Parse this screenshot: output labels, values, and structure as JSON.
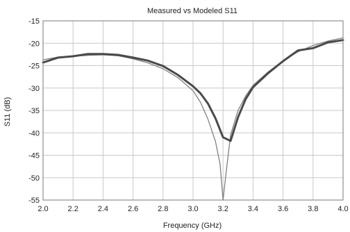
{
  "chart_data": {
    "type": "line",
    "title": "Measured vs Modeled S11",
    "xlabel": "Frequency (GHz)",
    "ylabel": "S11 (dB)",
    "xlim": [
      2.0,
      4.0
    ],
    "ylim": [
      -55,
      -15
    ],
    "x_ticks": [
      "2.0",
      "2.2",
      "2.4",
      "2.6",
      "2.8",
      "3.0",
      "3.2",
      "3.4",
      "3.6",
      "3.8",
      "4.0"
    ],
    "y_ticks": [
      "-15",
      "-20",
      "-25",
      "-30",
      "-35",
      "-40",
      "-45",
      "-50",
      "-55"
    ],
    "grid": true,
    "legend": "none",
    "series": [
      {
        "color": "#4a4a4a",
        "style": "thick",
        "x": [
          2.0,
          2.1,
          2.2,
          2.3,
          2.4,
          2.5,
          2.6,
          2.7,
          2.8,
          2.9,
          3.0,
          3.05,
          3.1,
          3.15,
          3.2,
          3.25,
          3.3,
          3.35,
          3.4,
          3.5,
          3.6,
          3.7,
          3.8,
          3.9,
          4.0
        ],
        "y": [
          -24.3,
          -23.2,
          -22.9,
          -22.4,
          -22.4,
          -22.6,
          -23.2,
          -23.9,
          -25.1,
          -27.1,
          -29.6,
          -31.2,
          -33.5,
          -36.8,
          -41.0,
          -41.8,
          -36.5,
          -32.5,
          -29.8,
          -26.7,
          -24.0,
          -21.6,
          -21.1,
          -19.8,
          -19.3
        ]
      },
      {
        "color": "#808080",
        "style": "thin",
        "x": [
          2.0,
          2.1,
          2.2,
          2.3,
          2.4,
          2.5,
          2.6,
          2.7,
          2.8,
          2.9,
          3.0,
          3.05,
          3.1,
          3.15,
          3.18,
          3.2,
          3.22,
          3.25,
          3.3,
          3.35,
          3.4,
          3.5,
          3.6,
          3.7,
          3.8,
          3.9,
          4.0
        ],
        "y": [
          -23.7,
          -23.1,
          -22.9,
          -22.7,
          -22.6,
          -22.8,
          -23.5,
          -24.4,
          -25.7,
          -27.7,
          -30.6,
          -33.2,
          -37.0,
          -42.0,
          -47.0,
          -55.0,
          -49.0,
          -40.5,
          -35.0,
          -31.8,
          -29.4,
          -26.4,
          -23.9,
          -21.9,
          -20.5,
          -19.5,
          -18.8
        ]
      }
    ]
  }
}
